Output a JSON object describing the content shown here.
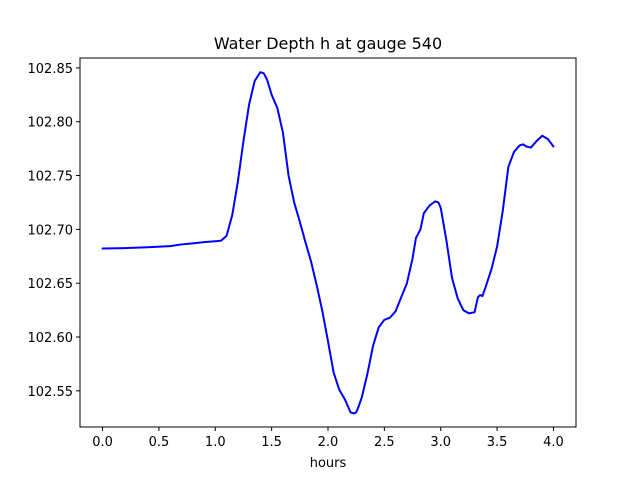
{
  "chart_data": {
    "type": "line",
    "title": "Water Depth h at gauge 540",
    "xlabel": "hours",
    "ylabel": "",
    "xlim": [
      -0.2,
      4.2
    ],
    "ylim": [
      102.5164,
      102.8592
    ],
    "xticks": [
      "0.0",
      "0.5",
      "1.0",
      "1.5",
      "2.0",
      "2.5",
      "3.0",
      "3.5",
      "4.0"
    ],
    "yticks": [
      "102.55",
      "102.60",
      "102.65",
      "102.70",
      "102.75",
      "102.80",
      "102.85"
    ],
    "grid": false,
    "series": [
      {
        "color": "#0000ff",
        "x": [
          0.0,
          0.2,
          0.4,
          0.6,
          0.7,
          0.8,
          0.9,
          1.0,
          1.05,
          1.1,
          1.15,
          1.2,
          1.25,
          1.3,
          1.35,
          1.4,
          1.43,
          1.46,
          1.5,
          1.55,
          1.6,
          1.65,
          1.7,
          1.75,
          1.8,
          1.85,
          1.9,
          1.95,
          2.0,
          2.05,
          2.1,
          2.15,
          2.2,
          2.23,
          2.25,
          2.27,
          2.3,
          2.35,
          2.4,
          2.45,
          2.5,
          2.55,
          2.6,
          2.65,
          2.7,
          2.75,
          2.78,
          2.8,
          2.82,
          2.85,
          2.9,
          2.95,
          2.98,
          3.0,
          3.05,
          3.1,
          3.15,
          3.2,
          3.25,
          3.3,
          3.33,
          3.35,
          3.37,
          3.4,
          3.45,
          3.5,
          3.55,
          3.6,
          3.65,
          3.7,
          3.73,
          3.76,
          3.8,
          3.85,
          3.9,
          3.95,
          4.0
        ],
        "y": [
          102.6822,
          102.6826,
          102.6834,
          102.6844,
          102.686,
          102.687,
          102.6882,
          102.689,
          102.6894,
          102.694,
          102.713,
          102.744,
          102.782,
          102.816,
          102.838,
          102.846,
          102.845,
          102.839,
          102.825,
          102.813,
          102.79,
          102.75,
          102.725,
          102.707,
          102.688,
          102.67,
          102.648,
          102.624,
          102.596,
          102.567,
          102.551,
          102.542,
          102.53,
          102.529,
          102.53,
          102.535,
          102.544,
          102.566,
          102.592,
          102.609,
          102.616,
          102.618,
          102.624,
          102.637,
          102.65,
          102.673,
          102.692,
          102.696,
          102.7,
          102.715,
          102.722,
          102.726,
          102.725,
          102.72,
          102.69,
          102.655,
          102.636,
          102.625,
          102.622,
          102.623,
          102.637,
          102.639,
          102.638,
          102.647,
          102.663,
          102.684,
          102.717,
          102.758,
          102.772,
          102.778,
          102.779,
          102.777,
          102.776,
          102.782,
          102.787,
          102.784,
          102.777
        ]
      }
    ]
  }
}
